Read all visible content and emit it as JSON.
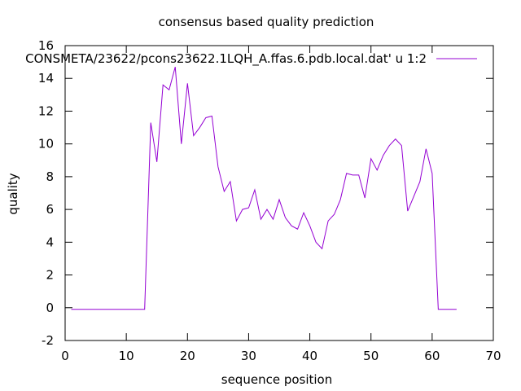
{
  "chart_data": {
    "type": "line",
    "title": "consensus based quality prediction",
    "xlabel": "sequence position",
    "ylabel": "quality",
    "xlim": [
      0,
      70
    ],
    "ylim": [
      -2,
      16
    ],
    "xticks": [
      0,
      10,
      20,
      30,
      40,
      50,
      60,
      70
    ],
    "yticks": [
      -2,
      0,
      2,
      4,
      6,
      8,
      10,
      12,
      14,
      16
    ],
    "grid": false,
    "legend_position": "top-right",
    "series": [
      {
        "name": "CONSMETA/23622/pcons23622.1LQH_A.ffas.6.pdb.local.dat' u 1:2",
        "color": "#9400d3",
        "x": [
          1,
          2,
          3,
          4,
          5,
          6,
          7,
          8,
          9,
          10,
          11,
          12,
          13,
          14,
          15,
          16,
          17,
          18,
          19,
          20,
          21,
          22,
          23,
          24,
          25,
          26,
          27,
          28,
          29,
          30,
          31,
          32,
          33,
          34,
          35,
          36,
          37,
          38,
          39,
          40,
          41,
          42,
          43,
          44,
          45,
          46,
          47,
          48,
          49,
          50,
          51,
          52,
          53,
          54,
          55,
          56,
          57,
          58,
          59,
          60,
          61,
          62,
          63,
          64
        ],
        "y": [
          -0.1,
          -0.1,
          -0.1,
          -0.1,
          -0.1,
          -0.1,
          -0.1,
          -0.1,
          -0.1,
          -0.1,
          -0.1,
          -0.1,
          -0.1,
          11.3,
          8.9,
          13.6,
          13.3,
          14.7,
          10.0,
          13.7,
          10.5,
          11.0,
          11.6,
          11.7,
          8.6,
          7.1,
          7.7,
          5.3,
          6.0,
          6.1,
          7.2,
          5.4,
          6.0,
          5.4,
          6.6,
          5.5,
          5.0,
          4.8,
          5.8,
          5.0,
          4.0,
          3.6,
          5.3,
          5.7,
          6.6,
          8.2,
          8.1,
          8.1,
          6.7,
          9.1,
          8.4,
          9.3,
          9.9,
          10.3,
          9.9,
          5.9,
          6.8,
          7.7,
          9.7,
          8.2,
          -0.1,
          -0.1,
          -0.1,
          -0.1
        ]
      }
    ]
  }
}
